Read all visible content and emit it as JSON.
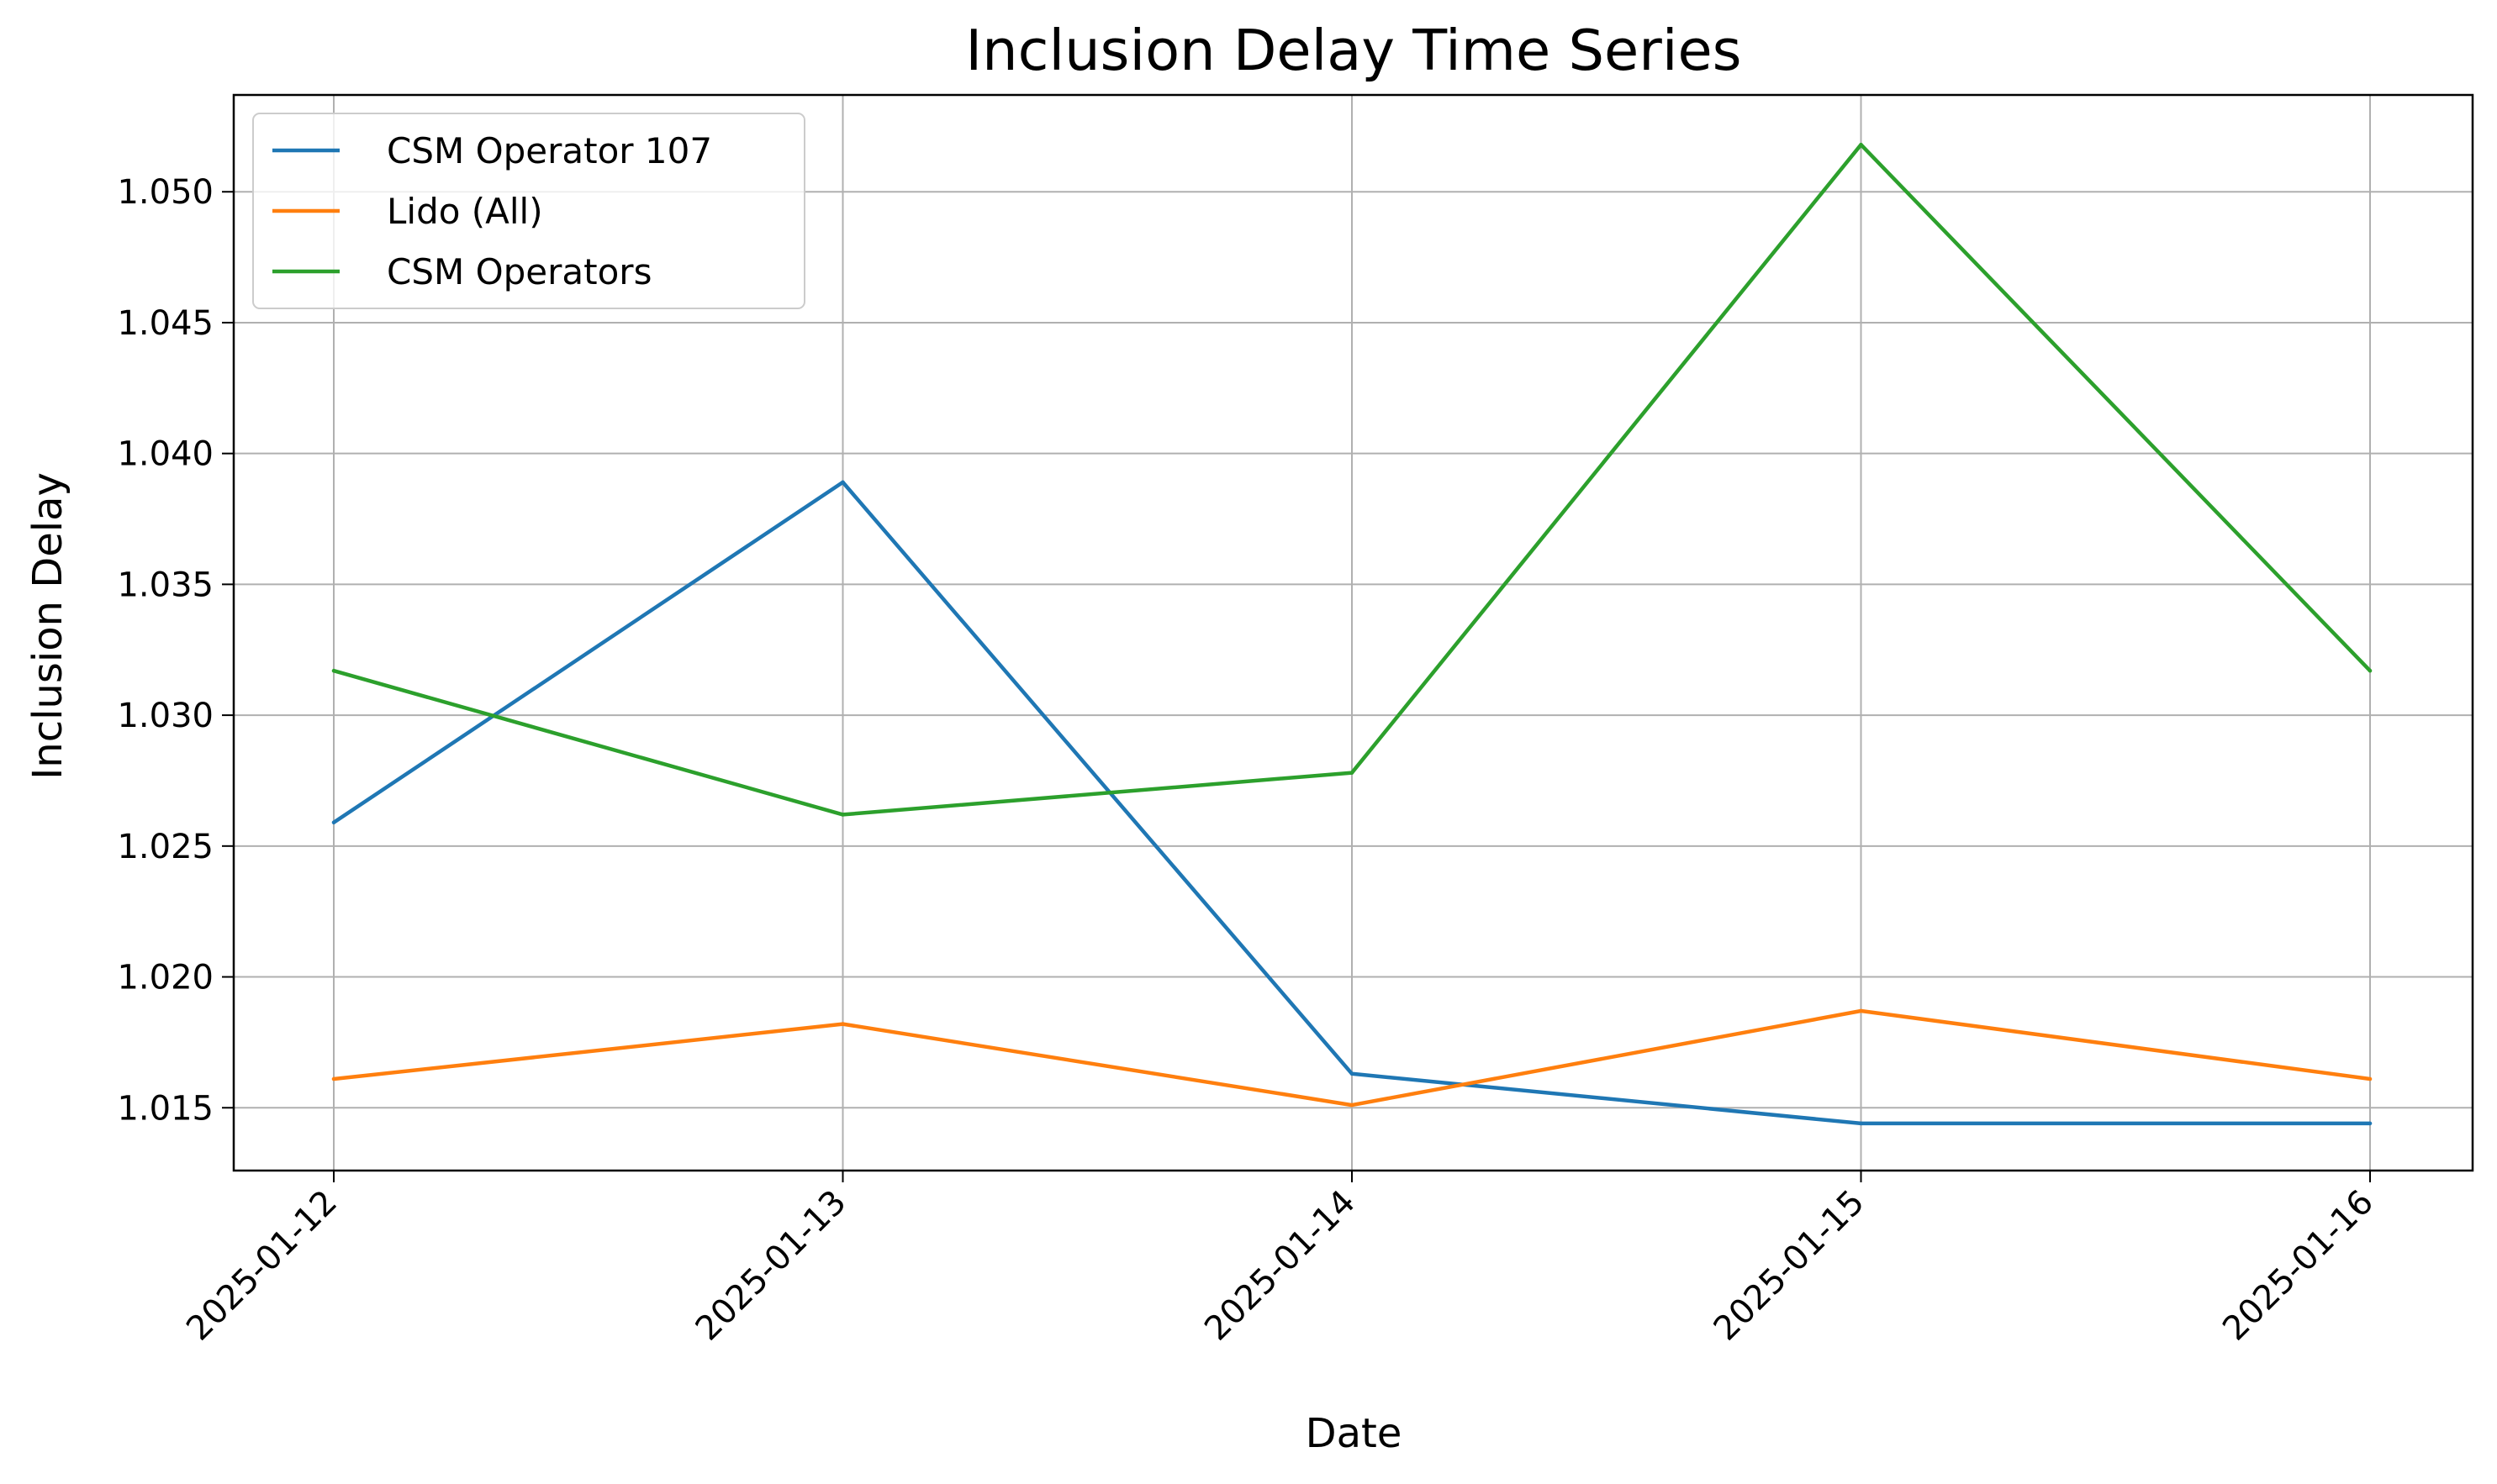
{
  "chart_data": {
    "type": "line",
    "title": "Inclusion Delay Time Series",
    "xlabel": "Date",
    "ylabel": "Inclusion Delay",
    "x": [
      "2025-01-12",
      "2025-01-13",
      "2025-01-14",
      "2025-01-15",
      "2025-01-16"
    ],
    "yticks": [
      "1.015",
      "1.020",
      "1.025",
      "1.030",
      "1.035",
      "1.040",
      "1.045",
      "1.050"
    ],
    "ylim": [
      1.0126,
      1.0537
    ],
    "grid": true,
    "legend_position": "top-left",
    "series": [
      {
        "name": "CSM Operator 107",
        "color": "#1f77b4",
        "values": [
          1.0259,
          1.0389,
          1.0163,
          1.0144,
          1.0144
        ]
      },
      {
        "name": "Lido (All)",
        "color": "#ff7f0e",
        "values": [
          1.0161,
          1.0182,
          1.0151,
          1.0187,
          1.0161
        ]
      },
      {
        "name": "CSM Operators",
        "color": "#2ca02c",
        "values": [
          1.0317,
          1.0262,
          1.0278,
          1.0518,
          1.0317
        ]
      }
    ]
  }
}
